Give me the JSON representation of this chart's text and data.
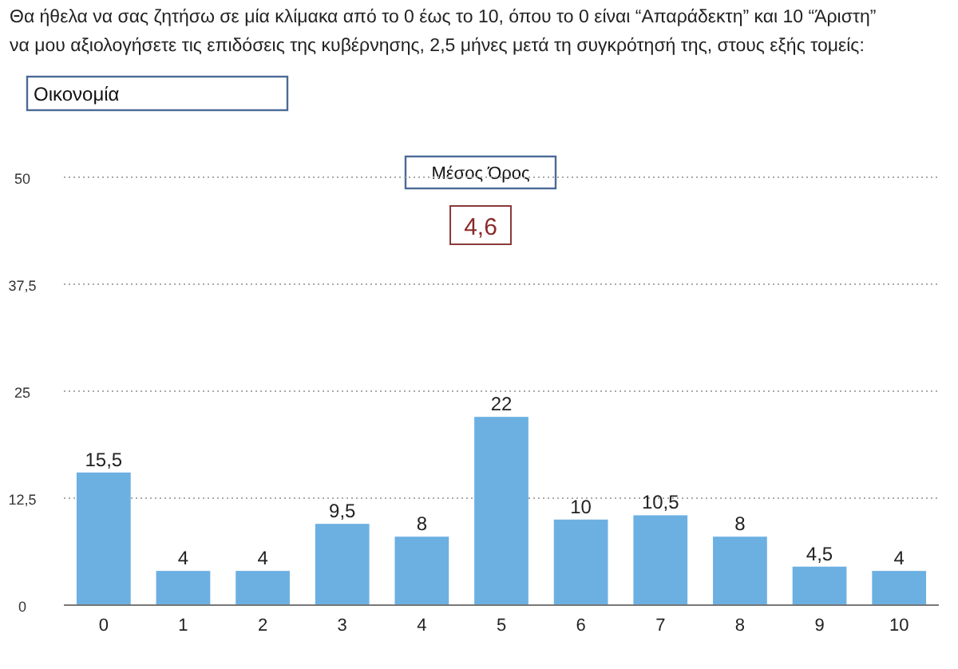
{
  "chart_data": {
    "type": "bar",
    "title": "Θα ήθελα να σας ζητήσω σε μία κλίμακα από το 0 έως το 10, όπου το 0 είναι “Απαράδεκτη” και 10 “Άριστη”\nνα μου αξιολογήσετε τις επιδόσεις της κυβέρνησης, 2,5 μήνες μετά τη συγκρότησή της, στους εξής τομείς:",
    "subtitle": "Οικονομία",
    "annotations": [
      "Μέσος Όρος",
      "4,6"
    ],
    "categories": [
      "0",
      "1",
      "2",
      "3",
      "4",
      "5",
      "6",
      "7",
      "8",
      "9",
      "10"
    ],
    "values": [
      15.5,
      4,
      4,
      9.5,
      8,
      22,
      10,
      10.5,
      8,
      4.5,
      4
    ],
    "value_labels": [
      "15,5",
      "4",
      "4",
      "9,5",
      "8",
      "22",
      "10",
      "10,5",
      "8",
      "4,5",
      "4"
    ],
    "color": "#6cb0e2",
    "ylim": [
      0,
      50
    ],
    "yticks": [
      0,
      {
        "value": 12.5,
        "label": "12,5"
      },
      25,
      {
        "value": 37.5,
        "label": "37,5"
      },
      50
    ],
    "grid": "y"
  }
}
